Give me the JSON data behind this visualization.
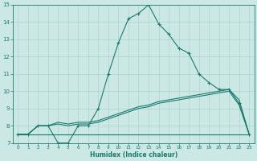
{
  "xlabel": "Humidex (Indice chaleur)",
  "xlim": [
    -0.5,
    23.5
  ],
  "ylim": [
    7,
    15
  ],
  "xticks": [
    0,
    1,
    2,
    3,
    4,
    5,
    6,
    7,
    8,
    9,
    10,
    11,
    12,
    13,
    14,
    15,
    16,
    17,
    18,
    19,
    20,
    21,
    22,
    23
  ],
  "yticks": [
    7,
    8,
    9,
    10,
    11,
    12,
    13,
    14,
    15
  ],
  "bg_color": "#cce8e4",
  "grid_color": "#aad4cc",
  "line_color": "#1a7a6e",
  "line1_x": [
    0,
    1,
    2,
    3,
    4,
    5,
    6,
    7,
    8,
    9,
    10,
    11,
    12,
    13,
    14,
    15,
    16,
    17,
    18,
    19,
    20,
    21,
    22,
    23
  ],
  "line1_y": [
    7.5,
    7.5,
    8.0,
    8.0,
    7.0,
    7.0,
    8.0,
    8.0,
    9.0,
    11.0,
    12.8,
    14.2,
    14.5,
    15.0,
    13.9,
    13.3,
    12.5,
    12.2,
    11.0,
    10.5,
    10.1,
    10.1,
    9.3,
    7.5
  ],
  "line2_x": [
    0,
    1,
    2,
    3,
    4,
    5,
    6,
    7,
    8,
    9,
    10,
    11,
    12,
    13,
    14,
    15,
    16,
    17,
    18,
    19,
    20,
    21,
    22,
    23
  ],
  "line2_y": [
    7.5,
    7.5,
    8.0,
    8.0,
    8.2,
    8.1,
    8.2,
    8.2,
    8.3,
    8.5,
    8.7,
    8.9,
    9.1,
    9.2,
    9.4,
    9.5,
    9.6,
    9.7,
    9.8,
    9.9,
    10.0,
    10.1,
    9.5,
    7.5
  ],
  "line3_x": [
    0,
    23
  ],
  "line3_y": [
    7.5,
    7.5
  ],
  "line4_x": [
    0,
    1,
    2,
    3,
    4,
    5,
    6,
    7,
    8,
    9,
    10,
    11,
    12,
    13,
    14,
    15,
    16,
    17,
    18,
    19,
    20,
    21,
    22,
    23
  ],
  "line4_y": [
    7.5,
    7.5,
    8.0,
    8.0,
    8.1,
    8.0,
    8.1,
    8.1,
    8.2,
    8.4,
    8.6,
    8.8,
    9.0,
    9.1,
    9.3,
    9.4,
    9.5,
    9.6,
    9.7,
    9.8,
    9.9,
    10.0,
    9.2,
    7.5
  ]
}
